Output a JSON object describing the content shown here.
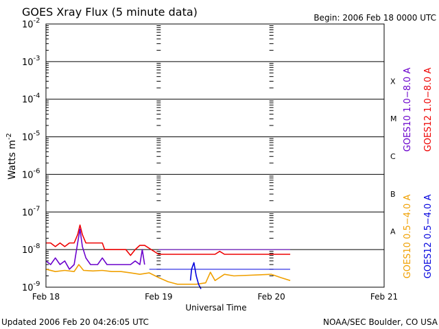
{
  "chart_data": {
    "type": "line",
    "title": "GOES Xray Flux (5 minute data)",
    "begin_label": "Begin:  2006 Feb 18 0000 UTC",
    "xlabel": "Universal Time",
    "ylabel": "Watts m",
    "ylabel_sup": "-2",
    "y_scale": "log",
    "ylim": [
      1e-09,
      0.01
    ],
    "xlim": [
      "2006-02-18 00:00",
      "2006-02-21 00:00"
    ],
    "x_ticks": [
      {
        "t": "2006-02-18 00:00",
        "label": "Feb 18"
      },
      {
        "t": "2006-02-19 00:00",
        "label": "Feb 19"
      },
      {
        "t": "2006-02-20 00:00",
        "label": "Feb 20"
      },
      {
        "t": "2006-02-21 00:00",
        "label": "Feb 21"
      }
    ],
    "y_ticks": [
      {
        "exp": -9,
        "base": "10",
        "sup": "-9"
      },
      {
        "exp": -8,
        "base": "10",
        "sup": "-8"
      },
      {
        "exp": -7,
        "base": "10",
        "sup": "-7"
      },
      {
        "exp": -6,
        "base": "10",
        "sup": "-6"
      },
      {
        "exp": -5,
        "base": "10",
        "sup": "-5"
      },
      {
        "exp": -4,
        "base": "10",
        "sup": "-4"
      },
      {
        "exp": -3,
        "base": "10",
        "sup": "-3"
      },
      {
        "exp": -2,
        "base": "10",
        "sup": "-2"
      }
    ],
    "flare_classes": [
      {
        "label": "X",
        "exp": -4
      },
      {
        "label": "M",
        "exp": -5
      },
      {
        "label": "C",
        "exp": -6
      },
      {
        "label": "B",
        "exp": -7
      },
      {
        "label": "A",
        "exp": -8
      }
    ],
    "grid": "horizontal lines at each decade",
    "legend_placement": "right side, vertical",
    "series": [
      {
        "name": "GOES12 1.0−8.0 A",
        "color": "#ee0000",
        "points": [
          [
            "2006-02-18 00:00",
            1.5e-08
          ],
          [
            "2006-02-18 01:00",
            1.5e-08
          ],
          [
            "2006-02-18 02:00",
            1.2e-08
          ],
          [
            "2006-02-18 03:00",
            1.5e-08
          ],
          [
            "2006-02-18 04:00",
            1.2e-08
          ],
          [
            "2006-02-18 05:00",
            1.5e-08
          ],
          [
            "2006-02-18 06:00",
            1.5e-08
          ],
          [
            "2006-02-18 06:45",
            2.5e-08
          ],
          [
            "2006-02-18 07:15",
            4.5e-08
          ],
          [
            "2006-02-18 07:45",
            2.5e-08
          ],
          [
            "2006-02-18 08:30",
            1.5e-08
          ],
          [
            "2006-02-18 10:00",
            1.5e-08
          ],
          [
            "2006-02-18 12:00",
            1.5e-08
          ],
          [
            "2006-02-18 12:30",
            1e-08
          ],
          [
            "2006-02-18 14:00",
            1e-08
          ],
          [
            "2006-02-18 17:00",
            1e-08
          ],
          [
            "2006-02-18 18:00",
            7e-09
          ],
          [
            "2006-02-18 19:00",
            1e-08
          ],
          [
            "2006-02-18 20:00",
            1.3e-08
          ],
          [
            "2006-02-18 21:00",
            1.3e-08
          ],
          [
            "2006-02-19 00:00",
            7.5e-09
          ],
          [
            "2006-02-19 12:00",
            7.5e-09
          ],
          [
            "2006-02-19 13:00",
            9e-09
          ],
          [
            "2006-02-19 14:00",
            7.5e-09
          ],
          [
            "2006-02-20 00:00",
            7.5e-09
          ],
          [
            "2006-02-20 04:00",
            7.5e-09
          ]
        ]
      },
      {
        "name": "GOES10 1.0−8.0 A",
        "color": "#6a00cc",
        "points": [
          [
            "2006-02-18 00:00",
            5e-09
          ],
          [
            "2006-02-18 01:00",
            4e-09
          ],
          [
            "2006-02-18 02:00",
            6e-09
          ],
          [
            "2006-02-18 03:00",
            4e-09
          ],
          [
            "2006-02-18 04:00",
            5e-09
          ],
          [
            "2006-02-18 05:00",
            3e-09
          ],
          [
            "2006-02-18 06:00",
            4e-09
          ],
          [
            "2006-02-18 06:45",
            1.5e-08
          ],
          [
            "2006-02-18 07:15",
            3.5e-08
          ],
          [
            "2006-02-18 07:45",
            1.2e-08
          ],
          [
            "2006-02-18 08:30",
            6e-09
          ],
          [
            "2006-02-18 09:30",
            4e-09
          ],
          [
            "2006-02-18 11:00",
            4e-09
          ],
          [
            "2006-02-18 12:00",
            6e-09
          ],
          [
            "2006-02-18 13:00",
            4e-09
          ],
          [
            "2006-02-18 14:00",
            4e-09
          ],
          [
            "2006-02-18 18:00",
            4e-09
          ],
          [
            "2006-02-18 19:00",
            5e-09
          ],
          [
            "2006-02-18 20:00",
            4e-09
          ],
          [
            "2006-02-18 20:30",
            1e-08
          ],
          [
            "2006-02-18 21:00",
            4e-09
          ]
        ]
      },
      {
        "name": "GOES10 0.5−4.0 A",
        "color": "#f0a000",
        "points": [
          [
            "2006-02-18 00:00",
            3e-09
          ],
          [
            "2006-02-18 02:00",
            2.6e-09
          ],
          [
            "2006-02-18 04:00",
            2.8e-09
          ],
          [
            "2006-02-18 06:00",
            2.6e-09
          ],
          [
            "2006-02-18 07:00",
            4e-09
          ],
          [
            "2006-02-18 08:00",
            2.8e-09
          ],
          [
            "2006-02-18 10:00",
            2.7e-09
          ],
          [
            "2006-02-18 12:00",
            2.8e-09
          ],
          [
            "2006-02-18 14:00",
            2.6e-09
          ],
          [
            "2006-02-18 16:00",
            2.6e-09
          ],
          [
            "2006-02-18 18:00",
            2.4e-09
          ],
          [
            "2006-02-18 20:00",
            2.2e-09
          ],
          [
            "2006-02-18 22:00",
            2.4e-09
          ],
          [
            "2006-02-19 00:00",
            1.8e-09
          ],
          [
            "2006-02-19 02:00",
            1.4e-09
          ],
          [
            "2006-02-19 04:00",
            1.2e-09
          ],
          [
            "2006-02-19 08:00",
            1.2e-09
          ],
          [
            "2006-02-19 10:00",
            1.3e-09
          ],
          [
            "2006-02-19 11:00",
            2.5e-09
          ],
          [
            "2006-02-19 12:00",
            1.5e-09
          ],
          [
            "2006-02-19 14:00",
            2.2e-09
          ],
          [
            "2006-02-19 16:00",
            2e-09
          ],
          [
            "2006-02-20 00:00",
            2.2e-09
          ],
          [
            "2006-02-20 02:00",
            1.8e-09
          ],
          [
            "2006-02-20 04:00",
            1.5e-09
          ]
        ]
      },
      {
        "name": "GOES12 0.5−4.0 A",
        "color": "#0000dd",
        "points": [
          [
            "2006-02-19 06:45",
            1.5e-09
          ],
          [
            "2006-02-19 07:00",
            3e-09
          ],
          [
            "2006-02-19 07:30",
            4.5e-09
          ],
          [
            "2006-02-19 08:00",
            2e-09
          ],
          [
            "2006-02-19 08:30",
            1.2e-09
          ],
          [
            "2006-02-19 09:00",
            9e-10
          ]
        ]
      }
    ],
    "reference_lines": [
      {
        "color": "#0000dd",
        "value": 3e-09,
        "from": "2006-02-18 22:00",
        "to": "2006-02-20 04:00"
      },
      {
        "color": "#6a00cc",
        "value": 1e-08,
        "from": "2006-02-19 00:00",
        "to": "2006-02-20 04:00"
      }
    ]
  },
  "footer": {
    "updated": "Updated 2006 Feb 20 04:26:05 UTC",
    "credit": "NOAA/SEC Boulder, CO USA"
  }
}
